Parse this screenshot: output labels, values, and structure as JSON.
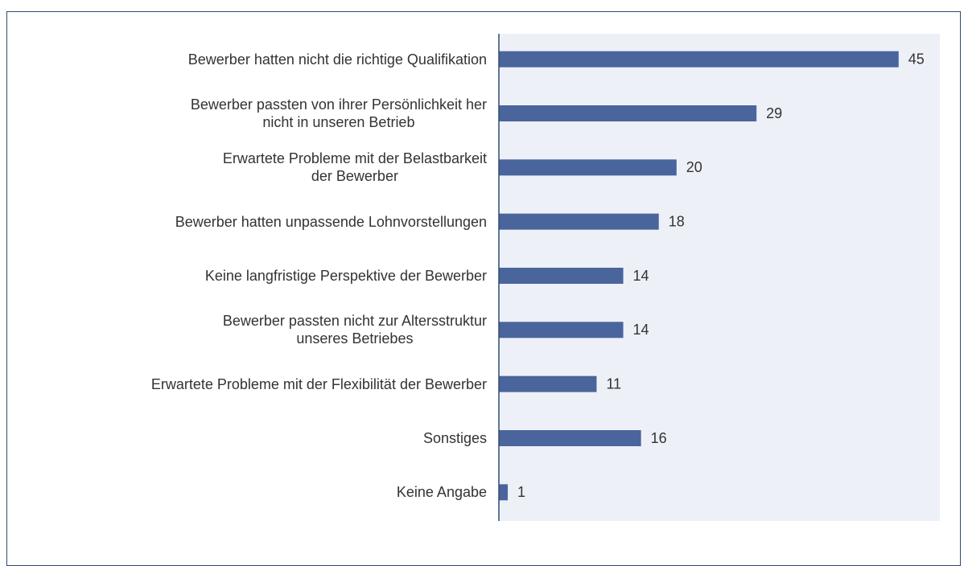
{
  "chart_data": {
    "type": "hbar",
    "categories": [
      "Bewerber hatten nicht die richtige Qualifikation",
      "Bewerber passten von ihrer Persönlichkeit her\nnicht in unseren Betrieb",
      "Erwartete Probleme mit der Belastbarkeit\nder Bewerber",
      "Bewerber hatten unpassende Lohnvorstellungen",
      "Keine langfristige Perspektive der Bewerber",
      "Bewerber passten nicht zur Altersstruktur\nunseres Betriebes",
      "Erwartete Probleme mit der Flexibilität der Bewerber",
      "Sonstiges",
      "Keine Angabe"
    ],
    "values": [
      45,
      29,
      20,
      18,
      14,
      14,
      11,
      16,
      1
    ],
    "color": "#4a649c",
    "xlim": [
      0,
      50
    ]
  }
}
